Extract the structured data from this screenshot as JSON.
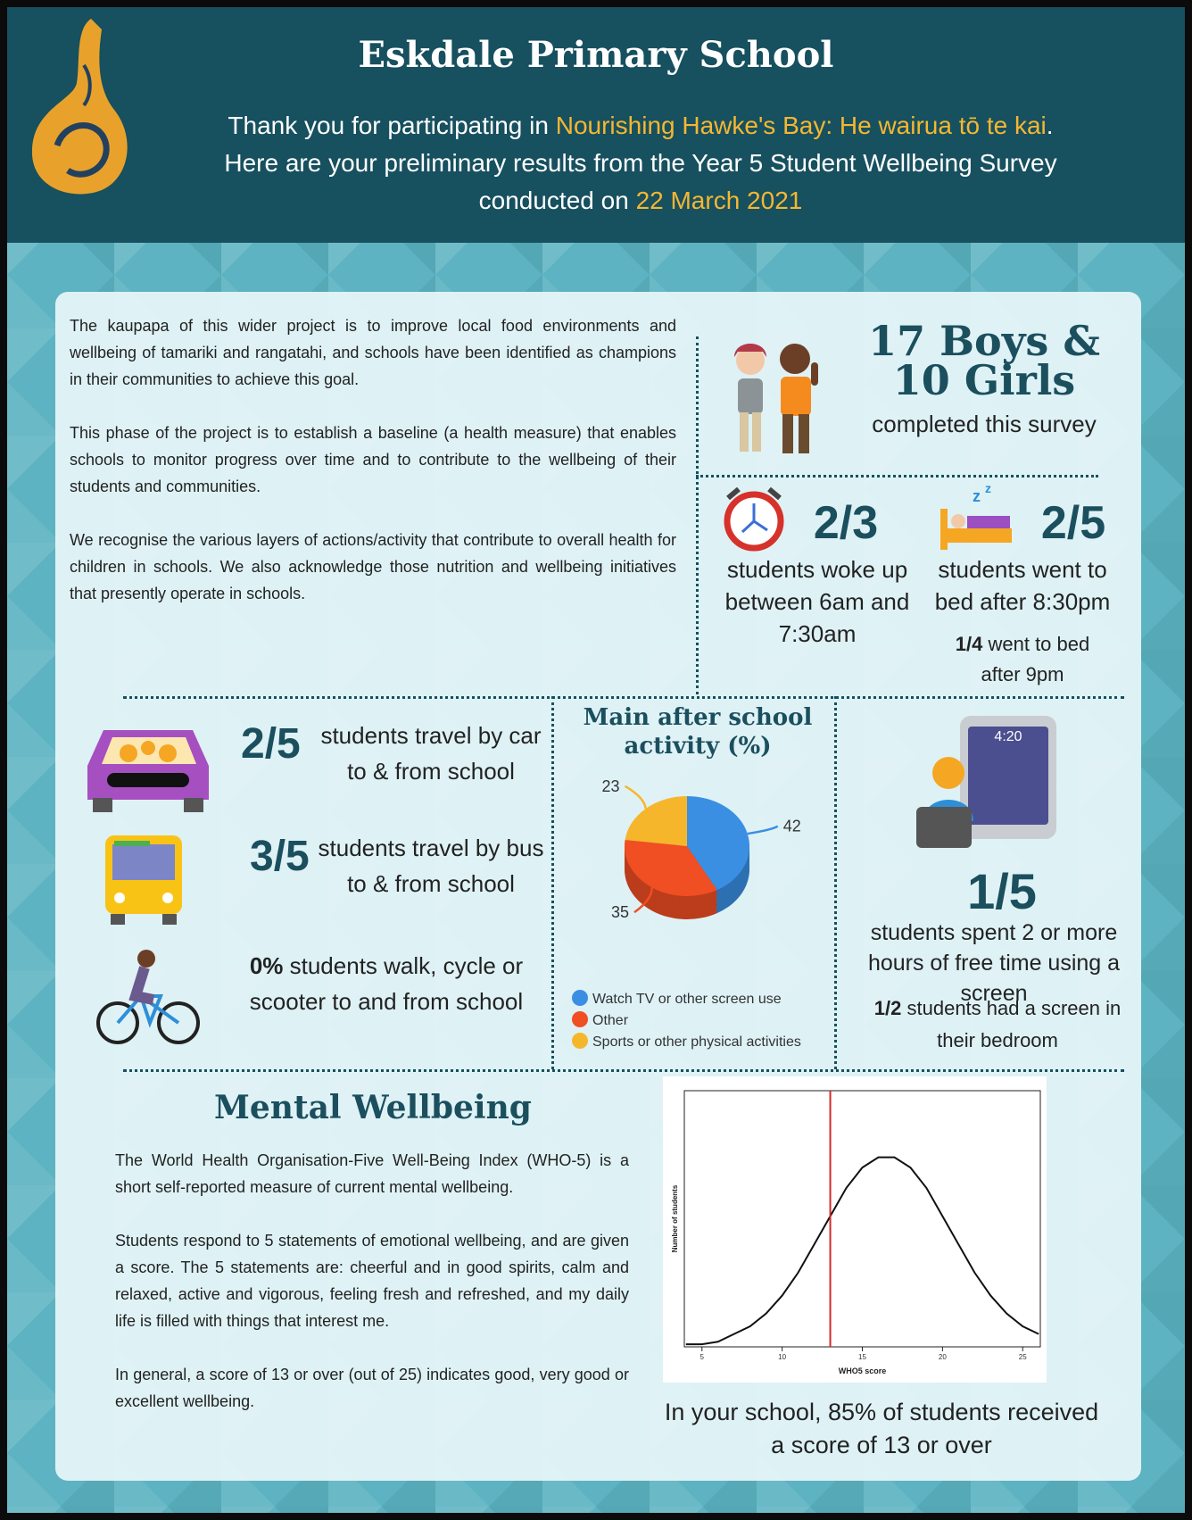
{
  "header": {
    "title": "Eskdale Primary School",
    "message": {
      "before": "Thank you for participating in",
      "project": "Nourishing Hawke's Bay: He wairua tō te kai",
      "after_project": ".",
      "line2": "Here are your preliminary results from the Year 5 Student Wellbeing Survey",
      "date_prefix": "conducted on",
      "date": "22 March 2021"
    }
  },
  "intro": [
    "The kaupapa of this wider project is to improve local food environments and wellbeing of tamariki and rangatahi, and schools have been identified as champions in their communities to achieve this goal.",
    "This phase of the project is to establish a baseline (a health measure) that enables schools to monitor progress over time and to contribute to the wellbeing of their students and communities.",
    "We recognise the various layers of actions/activity that contribute to overall health for children in schools. We also acknowledge those nutrition and wellbeing initiatives that presently operate in schools."
  ],
  "participants": {
    "boys": "17 Boys &",
    "girls": "10 Girls",
    "caption": "completed this survey"
  },
  "wake": {
    "fraction": "2/3",
    "text": "students woke up between 6am and 7:30am"
  },
  "bed": {
    "fraction": "2/5",
    "text": "students went to bed after 8:30pm",
    "note_fraction": "1/4",
    "note": "went to bed after 9pm"
  },
  "travel": [
    {
      "fraction": "2/5",
      "text": "students travel by car to & from school"
    },
    {
      "fraction": "3/5",
      "text": "students travel by bus to & from school"
    },
    {
      "fraction": "0%",
      "text": "students walk, cycle or scooter to and from school"
    }
  ],
  "activity_chart": {
    "type": "pie",
    "title": "Main after school activity (%)",
    "categories": [
      "Watch TV or other screen use",
      "Other",
      "Sports or other physical activities"
    ],
    "values": [
      42,
      35,
      23
    ],
    "colors": [
      "#3a8fe3",
      "#f04e23",
      "#f6b62c"
    ]
  },
  "screen": {
    "fraction": "1/5",
    "text": "students spent 2 or more hours of free time using a screen",
    "note_fraction": "1/2",
    "note": "students had a screen in their bedroom"
  },
  "mental": {
    "title": "Mental Wellbeing",
    "paragraphs": [
      "The World Health Organisation-Five Well-Being Index (WHO-5) is a short self-reported measure of current mental wellbeing.",
      "Students respond to 5 statements of emotional wellbeing, and are given a score. The 5 statements are: cheerful and in good spirits, calm and relaxed, active and vigorous, feeling fresh and refreshed, and my daily life is filled with things that interest me.",
      "In general, a score of 13 or over (out of 25) indicates good, very good or excellent wellbeing."
    ],
    "who5_chart": {
      "type": "line",
      "xlabel": "WHO5 score",
      "ylabel": "Number of students",
      "x": [
        4,
        5,
        6,
        7,
        8,
        9,
        10,
        11,
        12,
        13,
        14,
        15,
        16,
        17,
        18,
        19,
        20,
        21,
        22,
        23,
        24,
        25,
        26
      ],
      "values": [
        0.01,
        0.01,
        0.02,
        0.05,
        0.08,
        0.13,
        0.2,
        0.29,
        0.4,
        0.51,
        0.62,
        0.7,
        0.74,
        0.74,
        0.7,
        0.62,
        0.51,
        0.4,
        0.29,
        0.2,
        0.13,
        0.08,
        0.05
      ],
      "xlim": [
        3.9,
        26.1
      ],
      "ylim": [
        0,
        1
      ],
      "xticks": [
        5,
        10,
        15,
        20,
        25
      ],
      "color": "#111111",
      "threshold": 13,
      "threshold_color": "#d62728"
    },
    "result": "In your school, 85% of students received a score of 13 or over"
  }
}
